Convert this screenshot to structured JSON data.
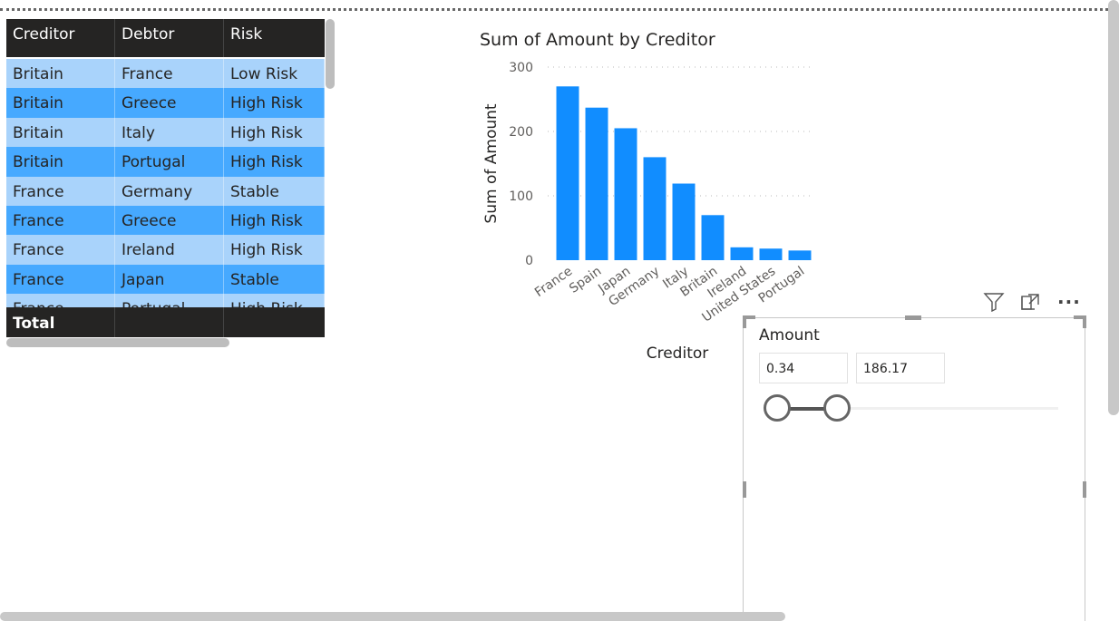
{
  "table": {
    "headers": [
      "Creditor",
      "Debtor",
      "Risk"
    ],
    "rows": [
      [
        "Britain",
        "France",
        "Low Risk"
      ],
      [
        "Britain",
        "Greece",
        "High Risk"
      ],
      [
        "Britain",
        "Italy",
        "High Risk"
      ],
      [
        "Britain",
        "Portugal",
        "High Risk"
      ],
      [
        "France",
        "Germany",
        "Stable"
      ],
      [
        "France",
        "Greece",
        "High Risk"
      ],
      [
        "France",
        "Ireland",
        "High Risk"
      ],
      [
        "France",
        "Japan",
        "Stable"
      ],
      [
        "France",
        "Portugal",
        "High Risk"
      ]
    ],
    "total_label": "Total"
  },
  "chart_data": {
    "type": "bar",
    "title": "Sum of Amount by Creditor",
    "xlabel": "Creditor",
    "ylabel": "Sum of Amount",
    "categories": [
      "France",
      "Spain",
      "Japan",
      "Germany",
      "Italy",
      "Britain",
      "Ireland",
      "United States",
      "Portugal"
    ],
    "values": [
      270,
      237,
      205,
      160,
      119,
      70,
      20,
      18,
      15
    ],
    "yticks": [
      "0",
      "100",
      "200",
      "300"
    ],
    "ylim": [
      0,
      300
    ],
    "grid": true,
    "bar_color": "#118dff"
  },
  "slicer": {
    "title": "Amount",
    "min_value": "0.34",
    "max_value": "186.17",
    "range_start_fraction": 0.0,
    "range_end_fraction": 0.25
  },
  "toolbar": {
    "filter_icon": "filter-icon",
    "focus_icon": "focus-mode-icon",
    "more_icon": "more-options-icon"
  }
}
